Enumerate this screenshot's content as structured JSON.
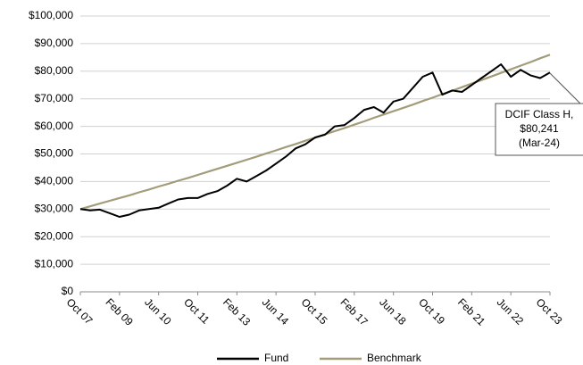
{
  "chart_data": {
    "type": "line",
    "x": [
      "Oct 07",
      "Feb 08",
      "Jun 08",
      "Oct 08",
      "Feb 09",
      "Jun 09",
      "Oct 09",
      "Feb 10",
      "Jun 10",
      "Oct 10",
      "Feb 11",
      "Jun 11",
      "Oct 11",
      "Feb 12",
      "Jun 12",
      "Oct 12",
      "Feb 13",
      "Jun 13",
      "Oct 13",
      "Feb 14",
      "Jun 14",
      "Oct 14",
      "Feb 15",
      "Jun 15",
      "Oct 15",
      "Feb 16",
      "Jun 16",
      "Oct 16",
      "Feb 17",
      "Jun 17",
      "Oct 17",
      "Feb 18",
      "Jun 18",
      "Oct 18",
      "Feb 19",
      "Jun 19",
      "Oct 19",
      "Feb 20",
      "Jun 20",
      "Oct 20",
      "Feb 21",
      "Jun 21",
      "Oct 21",
      "Feb 22",
      "Jun 22",
      "Oct 22",
      "Feb 23",
      "Jun 23",
      "Oct 23"
    ],
    "series": [
      {
        "name": "Fund",
        "color": "#000000",
        "values": [
          30000,
          29500,
          29800,
          28500,
          27200,
          28000,
          29500,
          30000,
          30500,
          32000,
          33500,
          34000,
          34000,
          35500,
          36500,
          38500,
          41000,
          40000,
          42000,
          44000,
          46500,
          49000,
          52000,
          53500,
          56000,
          57000,
          60000,
          60500,
          63000,
          66000,
          67000,
          65000,
          69000,
          70000,
          74000,
          78000,
          79500,
          71500,
          73000,
          72500,
          75000,
          77500,
          80000,
          82500,
          78000,
          80500,
          78500,
          77500,
          79500
        ]
      },
      {
        "name": "Benchmark",
        "color": "#a39c79",
        "values": [
          30000,
          31000,
          32000,
          33000,
          34000,
          35000,
          36100,
          37100,
          38200,
          39200,
          40300,
          41300,
          42400,
          43500,
          44600,
          45700,
          46800,
          47900,
          49000,
          50200,
          51300,
          52500,
          53600,
          54800,
          55900,
          57100,
          58300,
          59400,
          60600,
          61800,
          63100,
          64300,
          65500,
          66700,
          67900,
          69200,
          70400,
          71700,
          72900,
          74200,
          75500,
          76800,
          78100,
          79400,
          80700,
          82000,
          83300,
          84700,
          86000
        ]
      }
    ],
    "xticks": [
      "Oct 07",
      "Feb 09",
      "Jun 10",
      "Oct 11",
      "Feb 13",
      "Jun 14",
      "Oct 15",
      "Feb 17",
      "Jun 18",
      "Oct 19",
      "Feb 21",
      "Jun 22",
      "Oct 23"
    ],
    "ylim": [
      0,
      100000
    ],
    "yticks": [
      {
        "value": 0,
        "label": "$0"
      },
      {
        "value": 10000,
        "label": "$10,000"
      },
      {
        "value": 20000,
        "label": "$20,000"
      },
      {
        "value": 30000,
        "label": "$30,000"
      },
      {
        "value": 40000,
        "label": "$40,000"
      },
      {
        "value": 50000,
        "label": "$50,000"
      },
      {
        "value": 60000,
        "label": "$60,000"
      },
      {
        "value": 70000,
        "label": "$70,000"
      },
      {
        "value": 80000,
        "label": "$80,000"
      },
      {
        "value": 90000,
        "label": "$90,000"
      },
      {
        "value": 100000,
        "label": "$100,000"
      }
    ],
    "grid": true,
    "legend": "bottom",
    "annotation": [
      "DCIF Class H,",
      "$80,241",
      "(Mar-24)"
    ]
  }
}
